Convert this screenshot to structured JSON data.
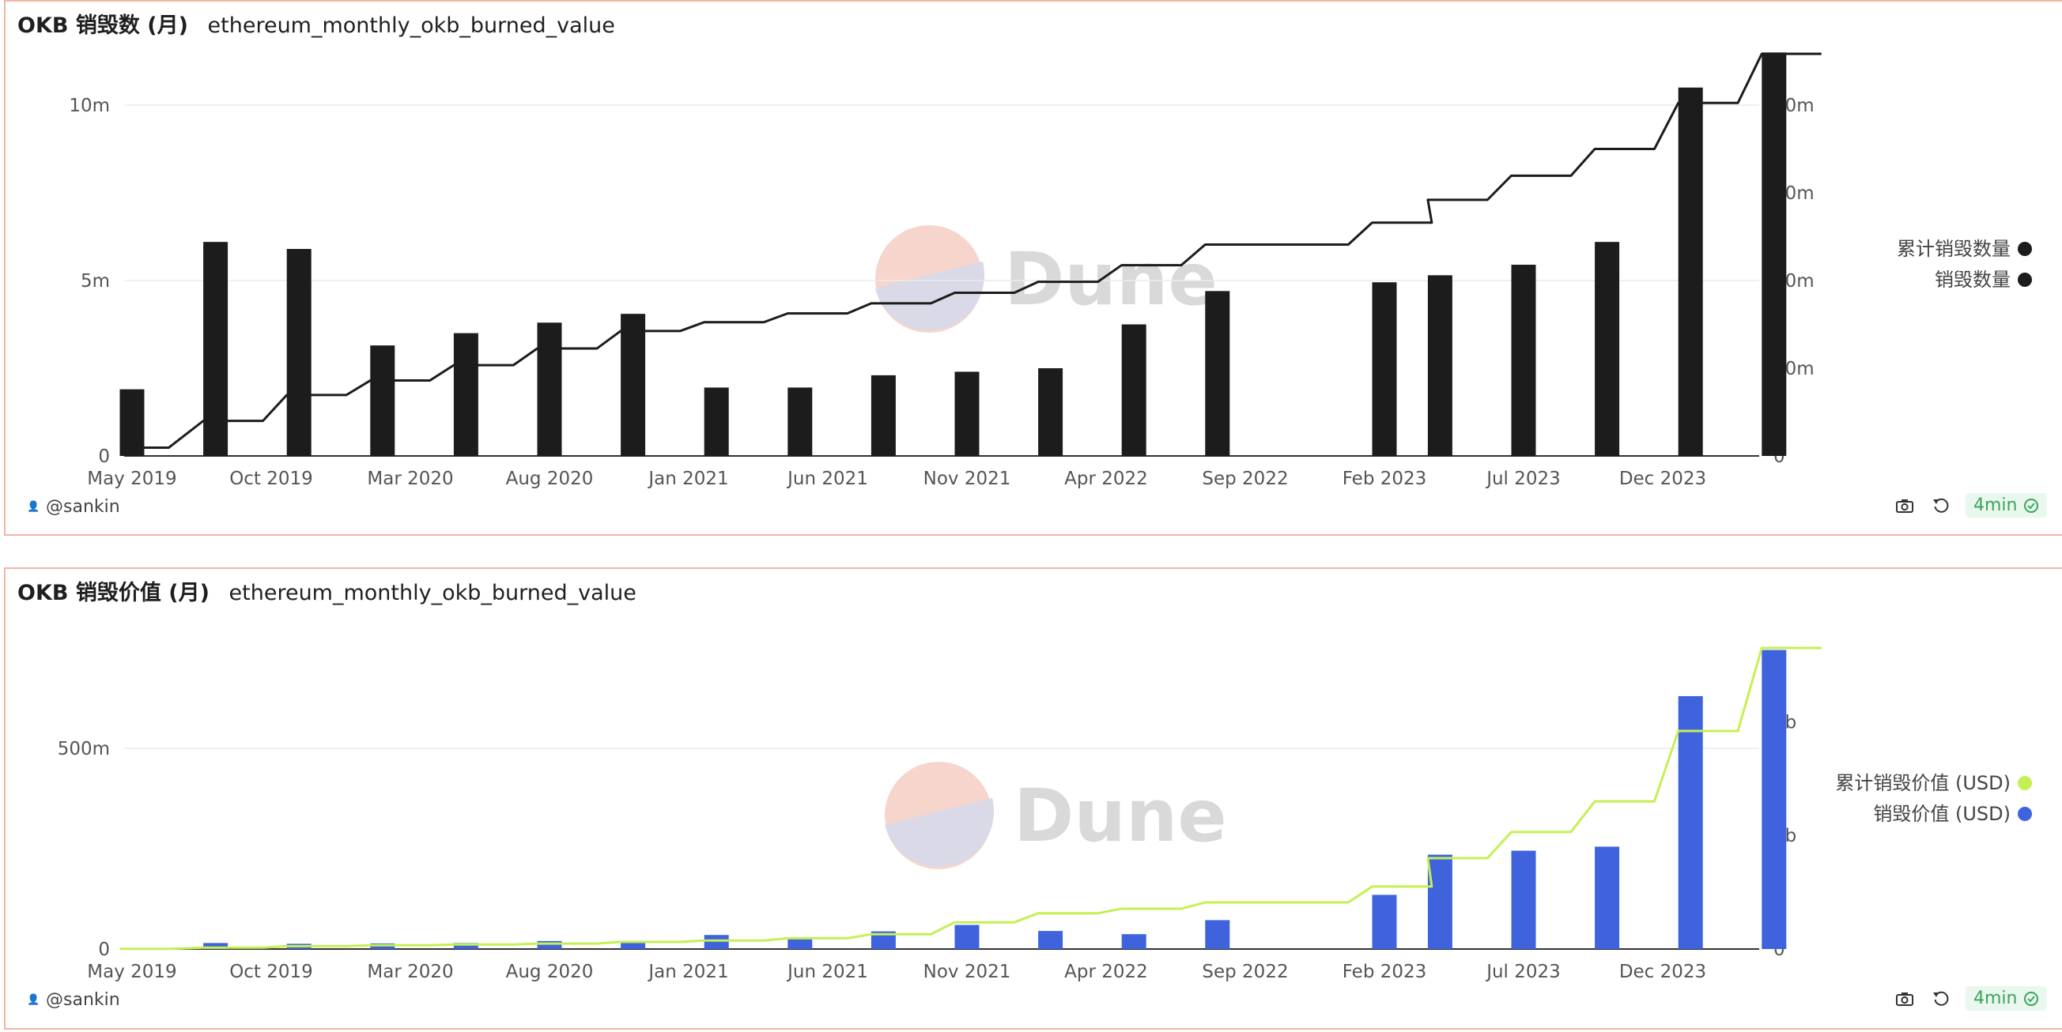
{
  "author": "@sankin",
  "freshness": "4min",
  "watermark": "Dune",
  "icons": {
    "snapshot": "camera-icon",
    "refresh": "refresh-icon",
    "ok": "check-circle-icon"
  },
  "colors": {
    "border": "#f2b5a3",
    "bars1": "#1c1c1c",
    "line1": "#1c1c1c",
    "bars2": "#3e63dd",
    "line2": "#c5f053"
  },
  "chart_data": [
    {
      "type": "bar",
      "title": "OKB 销毁数 (月)",
      "subtitle": "ethereum_monthly_okb_burned_value",
      "x_tick_labels": [
        "May 2019",
        "Oct 2019",
        "Mar 2020",
        "Aug 2020",
        "Jan 2021",
        "Jun 2021",
        "Nov 2021",
        "Apr 2022",
        "Sep 2022",
        "Feb 2023",
        "Jul 2023",
        "Dec 2023"
      ],
      "y_left_ticks": [
        "0",
        "5m",
        "10m"
      ],
      "y_right_ticks": [
        "0",
        "20m",
        "40m",
        "60m",
        "80m"
      ],
      "ylim_left": [
        0,
        12500000
      ],
      "ylim_right": [
        0,
        100000000
      ],
      "legend_position": "right",
      "x": [
        "2019-05",
        "2019-08",
        "2019-11",
        "2020-02",
        "2020-05",
        "2020-08",
        "2020-11",
        "2021-02",
        "2021-05",
        "2021-08",
        "2021-11",
        "2022-02",
        "2022-05",
        "2022-08",
        "2022-11",
        "2023-02",
        "2023-04",
        "2023-07",
        "2023-10",
        "2024-01",
        "2024-04"
      ],
      "series": [
        {
          "name": "累计销毁数量",
          "kind": "line",
          "axis": "right",
          "values": [
            1900000,
            8000000,
            13900000,
            17200000,
            20700000,
            24500000,
            28500000,
            30500000,
            32500000,
            34800000,
            37200000,
            39700000,
            43500000,
            48200000,
            48200000,
            53200000,
            58400000,
            63900000,
            70000000,
            80500000,
            91700000
          ]
        },
        {
          "name": "销毁数量",
          "kind": "bar",
          "axis": "left",
          "values": [
            1900000,
            6100000,
            5900000,
            3150000,
            3500000,
            3800000,
            4050000,
            1950000,
            1950000,
            2300000,
            2400000,
            2500000,
            3750000,
            4700000,
            null,
            4950000,
            5150000,
            5450000,
            6100000,
            10500000,
            11500000
          ]
        }
      ]
    },
    {
      "type": "bar",
      "title": "OKB 销毁价值 (月)",
      "subtitle": "ethereum_monthly_okb_burned_value",
      "x_tick_labels": [
        "May 2019",
        "Oct 2019",
        "Mar 2020",
        "Aug 2020",
        "Jan 2021",
        "Jun 2021",
        "Nov 2021",
        "Apr 2022",
        "Sep 2022",
        "Feb 2023",
        "Jul 2023",
        "Dec 2023"
      ],
      "y_left_ticks": [
        "0",
        "500m"
      ],
      "y_right_ticks": [
        "0",
        "1b",
        "2b"
      ],
      "ylim_left": [
        0,
        750000000
      ],
      "ylim_right": [
        0,
        2650000000
      ],
      "legend_position": "right",
      "x": [
        "2019-05",
        "2019-08",
        "2019-11",
        "2020-02",
        "2020-05",
        "2020-08",
        "2020-11",
        "2021-02",
        "2021-05",
        "2021-08",
        "2021-11",
        "2022-02",
        "2022-05",
        "2022-08",
        "2022-11",
        "2023-02",
        "2023-04",
        "2023-07",
        "2023-10",
        "2024-01",
        "2024-04"
      ],
      "series": [
        {
          "name": "累计销毁价值 (USD)",
          "kind": "line",
          "axis": "right",
          "values": [
            2000000,
            12000000,
            25000000,
            33000000,
            40000000,
            48000000,
            63000000,
            75000000,
            95000000,
            130000000,
            235000000,
            315000000,
            355000000,
            410000000,
            410000000,
            550000000,
            800000000,
            1030000000,
            1300000000,
            1920000000,
            2650000000
          ]
        },
        {
          "name": "销毁价值 (USD)",
          "kind": "bar",
          "axis": "left",
          "values": [
            1000000,
            15000000,
            13000000,
            14000000,
            15000000,
            20000000,
            20000000,
            35000000,
            27000000,
            44000000,
            60000000,
            45000000,
            37000000,
            72000000,
            null,
            135000000,
            235000000,
            245000000,
            255000000,
            630000000,
            745000000
          ]
        }
      ]
    }
  ]
}
